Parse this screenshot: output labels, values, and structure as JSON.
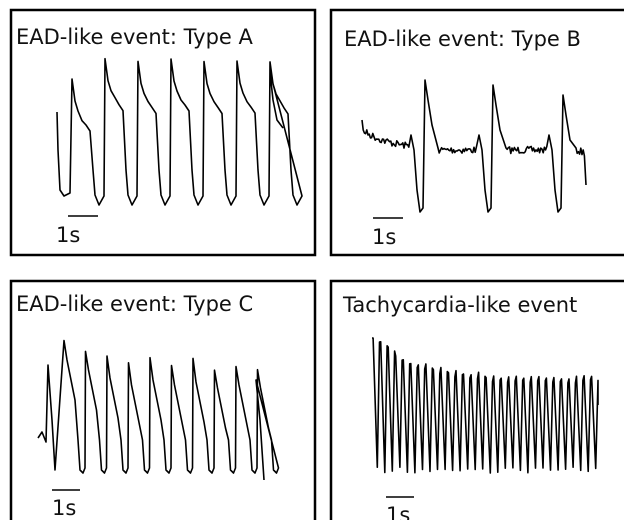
{
  "panels": [
    {
      "title": "EAD-like event: Type A",
      "scale_label": "1s"
    },
    {
      "title": "EAD-like event: Type B",
      "scale_label": "1s"
    },
    {
      "title": "EAD-like event: Type C",
      "scale_label": "1s"
    },
    {
      "title": "Tachycardia-like event",
      "scale_label": "1s"
    }
  ]
}
